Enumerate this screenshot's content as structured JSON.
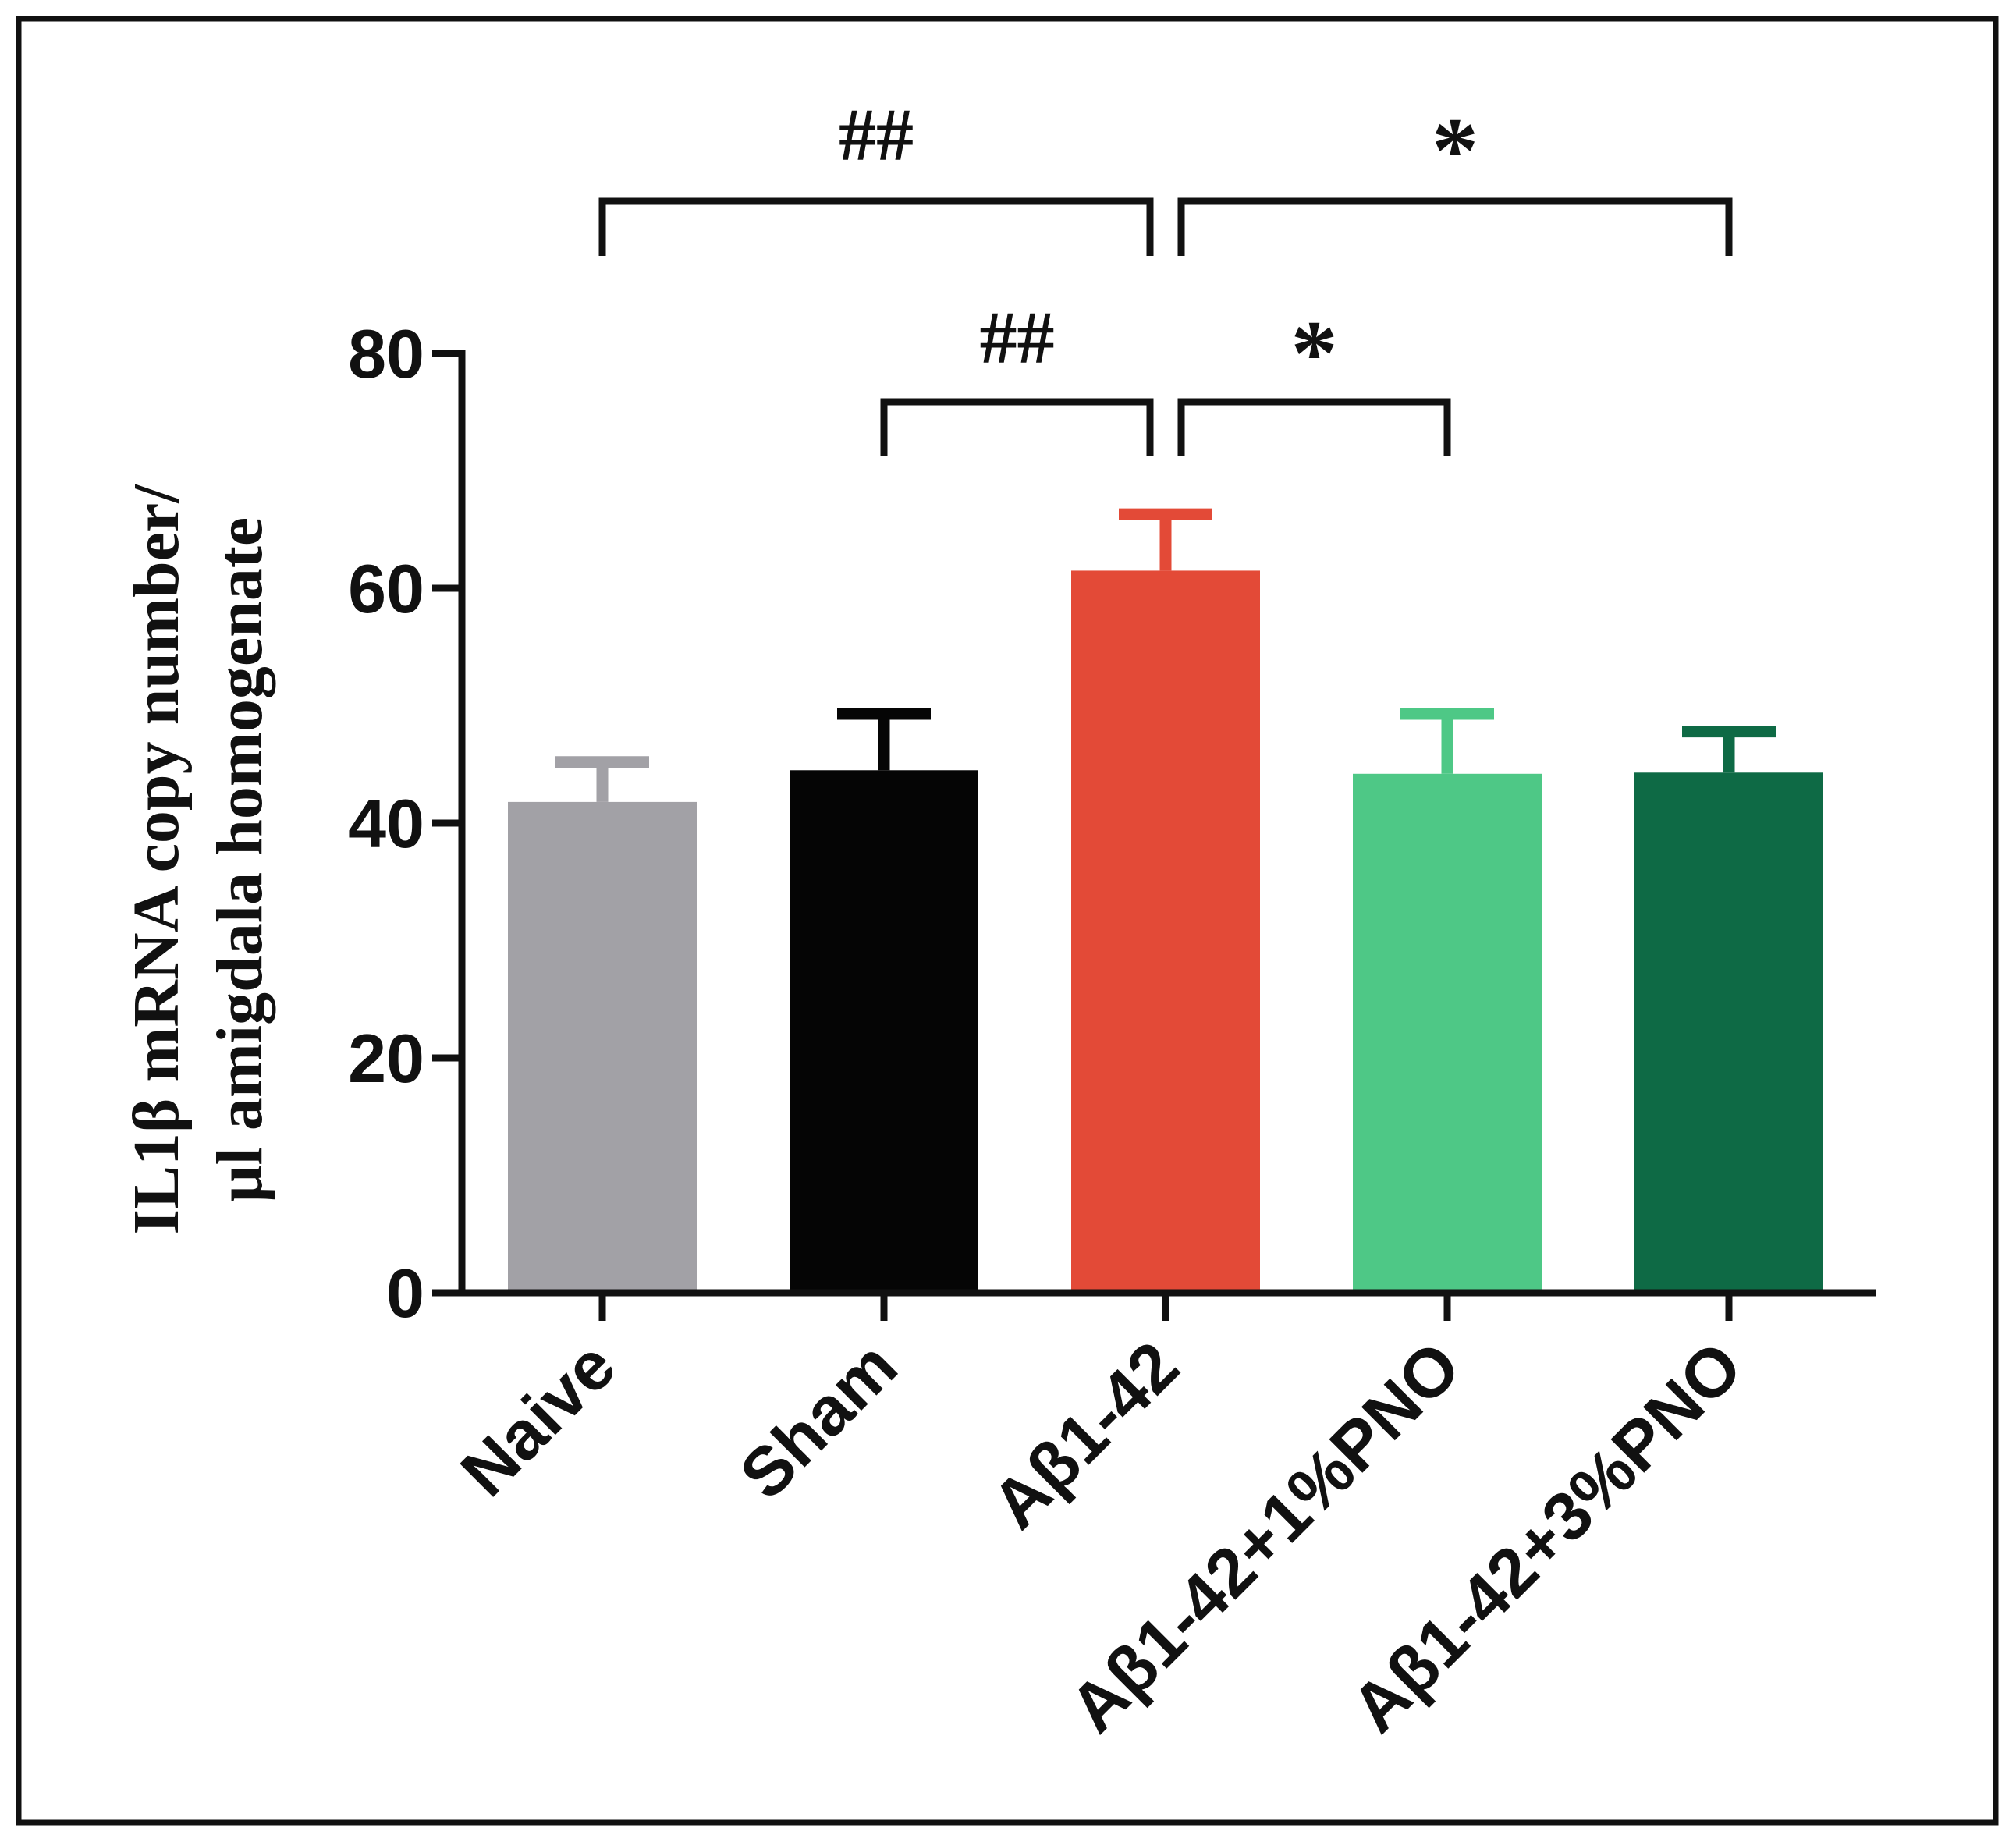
{
  "chart_data": {
    "type": "bar",
    "title": "",
    "xlabel": "",
    "ylabel_line1": "IL1β mRNA copy number/",
    "ylabel_line2": "μl amigdala homogenate",
    "ylim": [
      0,
      80
    ],
    "yticks": [
      0,
      20,
      40,
      60,
      80
    ],
    "categories": [
      "Naive",
      "Sham",
      "Aβ1-42",
      "Aβ1-42+1%PNO",
      "Aβ1-42+3%PNO"
    ],
    "values": [
      41.8,
      44.5,
      61.5,
      44.2,
      44.3
    ],
    "errors": [
      3.4,
      4.8,
      4.8,
      5.1,
      3.5
    ],
    "colors": [
      "#a2a1a6",
      "#050505",
      "#e34a37",
      "#4ec886",
      "#0e6a45"
    ],
    "significance": [
      {
        "from": 0,
        "to": 2,
        "label": "##",
        "level": "top"
      },
      {
        "from": 2,
        "to": 4,
        "label": "*",
        "level": "top"
      },
      {
        "from": 1,
        "to": 2,
        "label": "##",
        "level": "lower"
      },
      {
        "from": 2,
        "to": 3,
        "label": "*",
        "level": "lower"
      }
    ]
  }
}
